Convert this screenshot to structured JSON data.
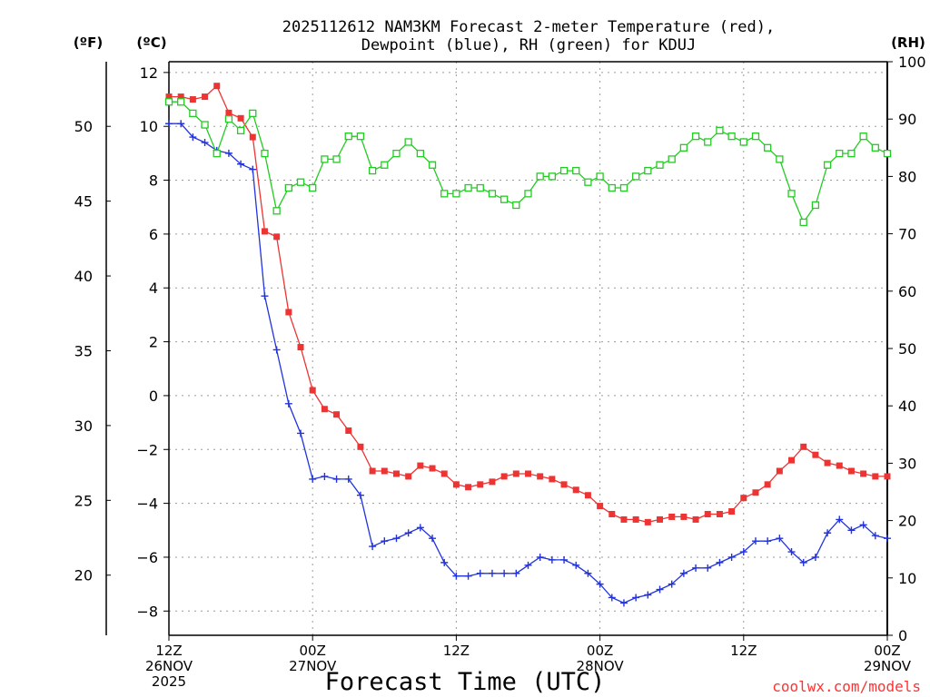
{
  "chart_data": {
    "type": "line",
    "title_line1": "2025112612 NAM3KM Forecast 2-meter Temperature (red),",
    "title_line2": "Dewpoint (blue), RH (green) for KDUJ",
    "units": {
      "f": "(ºF)",
      "c": "(ºC)",
      "rh": "(RH)"
    },
    "xlabel": "Forecast Time (UTC)",
    "credit": "coolwx.com/models",
    "x_range_hours": [
      0,
      60
    ],
    "x_ticks": [
      {
        "hour": 0,
        "line1": "12Z",
        "line2": "26NOV",
        "line3": "2025"
      },
      {
        "hour": 12,
        "line1": "00Z",
        "line2": "27NOV",
        "line3": ""
      },
      {
        "hour": 24,
        "line1": "12Z",
        "line2": "",
        "line3": ""
      },
      {
        "hour": 36,
        "line1": "00Z",
        "line2": "28NOV",
        "line3": ""
      },
      {
        "hour": 48,
        "line1": "12Z",
        "line2": "",
        "line3": ""
      },
      {
        "hour": 60,
        "line1": "00Z",
        "line2": "29NOV",
        "line3": ""
      }
    ],
    "y_celsius": {
      "range": [
        -8.9,
        12.4
      ],
      "ticks": [
        "12",
        "10",
        "8",
        "6",
        "4",
        "2",
        "0",
        "−2",
        "−4",
        "−6",
        "−8"
      ],
      "tick_values": [
        12,
        10,
        8,
        6,
        4,
        2,
        0,
        -2,
        -4,
        -6,
        -8
      ]
    },
    "y_fahrenheit": {
      "ticks": [
        "50",
        "45",
        "40",
        "35",
        "30",
        "25",
        "20"
      ],
      "tick_values": [
        50,
        45,
        40,
        35,
        30,
        25,
        20
      ]
    },
    "y_rh": {
      "range": [
        0,
        100
      ],
      "ticks": [
        "100",
        "90",
        "80",
        "70",
        "60",
        "50",
        "40",
        "30",
        "20",
        "10",
        "0"
      ],
      "tick_values": [
        100,
        90,
        80,
        70,
        60,
        50,
        40,
        30,
        20,
        10,
        0
      ]
    },
    "series": [
      {
        "name": "2-meter Temperature",
        "unit": "C",
        "color": "#ee3333",
        "marker": "filled-square",
        "values": [
          11.1,
          11.1,
          11.0,
          11.1,
          11.5,
          10.5,
          10.3,
          9.6,
          6.1,
          5.9,
          3.1,
          1.8,
          0.2,
          -0.5,
          -0.7,
          -1.3,
          -1.9,
          -2.8,
          -2.8,
          -2.9,
          -3.0,
          -2.6,
          -2.7,
          -2.9,
          -3.3,
          -3.4,
          -3.3,
          -3.2,
          -3.0,
          -2.9,
          -2.9,
          -3.0,
          -3.1,
          -3.3,
          -3.5,
          -3.7,
          -4.1,
          -4.4,
          -4.6,
          -4.6,
          -4.7,
          -4.6,
          -4.5,
          -4.5,
          -4.6,
          -4.4,
          -4.4,
          -4.3,
          -3.8,
          -3.6,
          -3.3,
          -2.8,
          -2.4,
          -1.9,
          -2.2,
          -2.5,
          -2.6,
          -2.8,
          -2.9,
          -3.0,
          -3.0
        ]
      },
      {
        "name": "Dewpoint",
        "unit": "C",
        "color": "#2233dd",
        "marker": "plus",
        "values": [
          10.1,
          10.1,
          9.6,
          9.4,
          9.1,
          9.0,
          8.6,
          8.4,
          3.7,
          1.7,
          -0.3,
          -1.4,
          -3.1,
          -3.0,
          -3.1,
          -3.1,
          -3.7,
          -5.6,
          -5.4,
          -5.3,
          -5.1,
          -4.9,
          -5.3,
          -6.2,
          -6.7,
          -6.7,
          -6.6,
          -6.6,
          -6.6,
          -6.6,
          -6.3,
          -6.0,
          -6.1,
          -6.1,
          -6.3,
          -6.6,
          -7.0,
          -7.5,
          -7.7,
          -7.5,
          -7.4,
          -7.2,
          -7.0,
          -6.6,
          -6.4,
          -6.4,
          -6.2,
          -6.0,
          -5.8,
          -5.4,
          -5.4,
          -5.3,
          -5.8,
          -6.2,
          -6.0,
          -5.1,
          -4.6,
          -5.0,
          -4.8,
          -5.2,
          -5.3
        ]
      },
      {
        "name": "RH",
        "unit": "%",
        "color": "#22cc22",
        "marker": "open-square",
        "values": [
          93,
          93,
          91,
          89,
          84,
          90,
          88,
          91,
          84,
          74,
          78,
          79,
          78,
          83,
          83,
          87,
          87,
          81,
          82,
          84,
          86,
          84,
          82,
          77,
          77,
          78,
          78,
          77,
          76,
          75,
          77,
          80,
          80,
          81,
          81,
          79,
          80,
          78,
          78,
          80,
          81,
          82,
          83,
          85,
          87,
          86,
          88,
          87,
          86,
          87,
          85,
          83,
          77,
          72,
          75,
          82,
          84,
          84,
          87,
          85,
          84
        ]
      }
    ]
  }
}
